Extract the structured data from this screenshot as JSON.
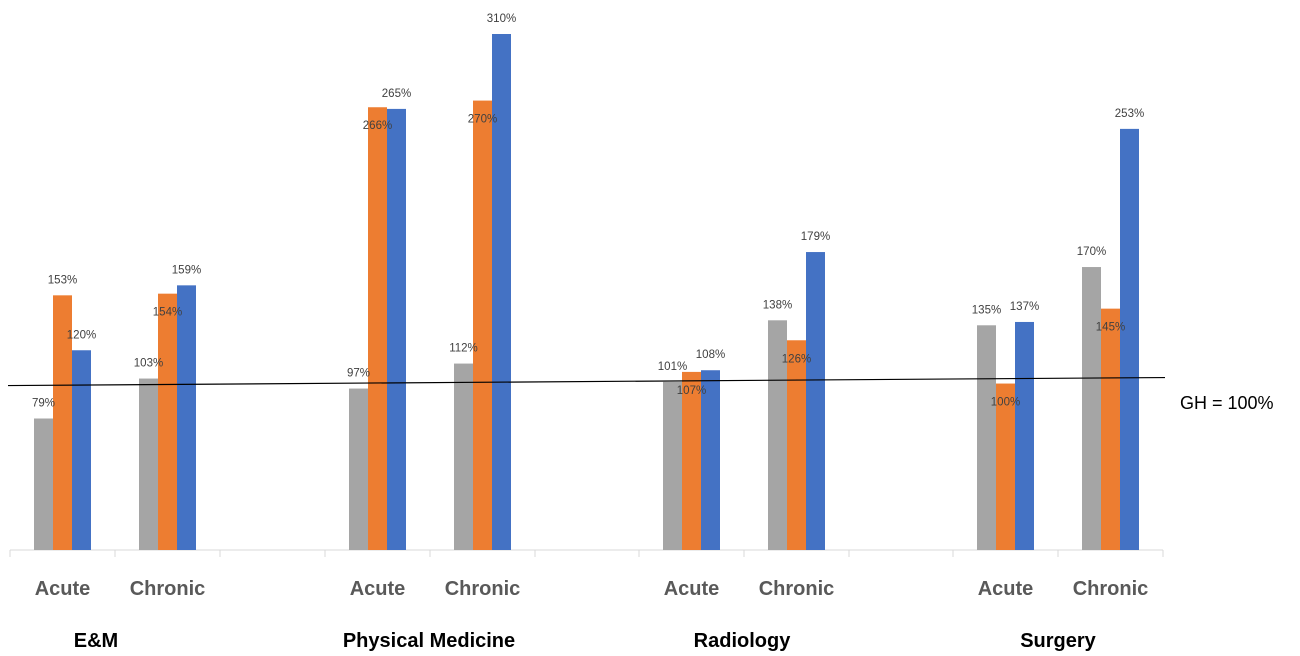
{
  "chart_data": {
    "type": "bar",
    "groups": [
      {
        "name": "E&M",
        "categories": [
          "Acute",
          "Chronic"
        ]
      },
      {
        "name": "Physical Medicine",
        "categories": [
          "Acute",
          "Chronic"
        ]
      },
      {
        "name": "Radiology",
        "categories": [
          "Acute",
          "Chronic"
        ]
      },
      {
        "name": "Surgery",
        "categories": [
          "Acute",
          "Chronic"
        ]
      }
    ],
    "categories": [
      "Acute",
      "Chronic",
      "Acute",
      "Chronic",
      "Acute",
      "Chronic",
      "Acute",
      "Chronic"
    ],
    "series": [
      {
        "color": "#a5a5a5",
        "values": [
          79,
          103,
          97,
          112,
          101,
          138,
          135,
          170
        ]
      },
      {
        "color": "#ed7d31",
        "values": [
          153,
          154,
          266,
          270,
          107,
          126,
          100,
          145
        ]
      },
      {
        "color": "#4472c4",
        "values": [
          120,
          159,
          265,
          310,
          108,
          179,
          137,
          253
        ]
      }
    ],
    "data_labels": [
      [
        "79%",
        "103%",
        "97%",
        "112%",
        "101%",
        "138%",
        "135%",
        "170%"
      ],
      [
        "153%",
        "154%",
        "266%",
        "270%",
        "107%",
        "126%",
        "100%",
        "145%"
      ],
      [
        "120%",
        "159%",
        "265%",
        "310%",
        "108%",
        "179%",
        "137%",
        "253%"
      ]
    ],
    "reference_line": {
      "value": 100,
      "label": "GH = 100%"
    },
    "ylim": [
      0,
      320
    ],
    "grid": false,
    "legend": "none"
  }
}
